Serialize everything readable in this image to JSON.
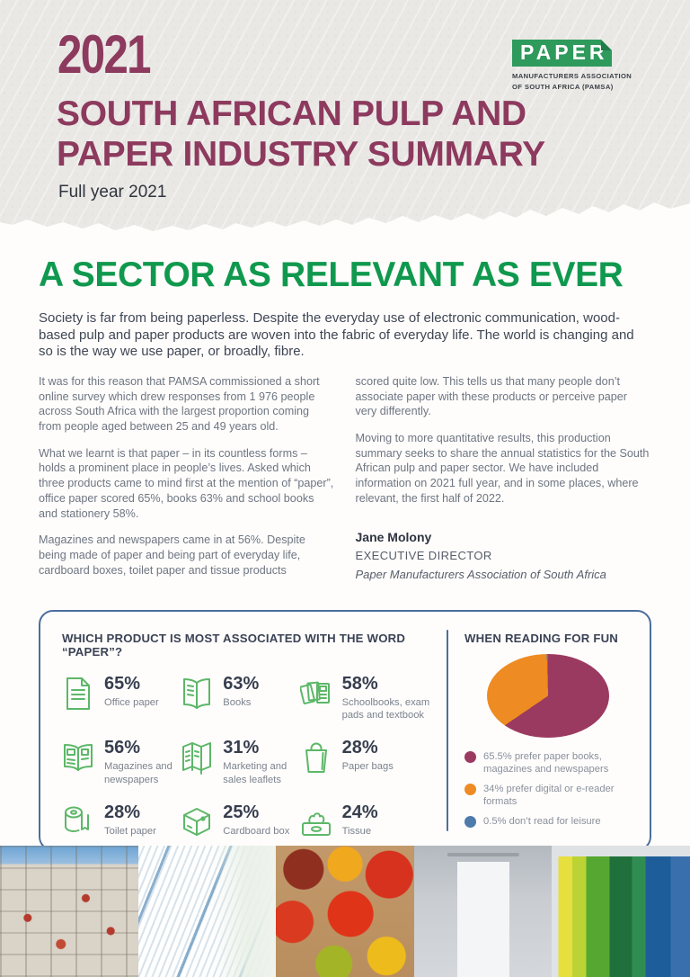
{
  "header": {
    "year": "2021",
    "logo": {
      "brand": "PAPER",
      "line1": "MANUFACTURERS ASSOCIATION",
      "line2": "OF SOUTH AFRICA (PAMSA)"
    },
    "title_line1": "SOUTH AFRICAN PULP AND",
    "title_line2": "PAPER INDUSTRY SUMMARY",
    "subtitle": "Full year 2021"
  },
  "article": {
    "heading": "A SECTOR AS RELEVANT AS EVER",
    "intro": "Society is far from being paperless. Despite the everyday use of electronic communication, wood-based pulp and paper products are woven into the fabric of everyday life. The world is changing and so is the way we use paper, or broadly, fibre.",
    "left_column": [
      "It was for this reason that PAMSA commissioned a short online survey which drew responses from 1 976 people across South Africa with the largest proportion coming from people aged between 25 and 49 years old.",
      "What we learnt is that paper – in its countless forms – holds a prominent place in people’s lives. Asked which three products came to mind first at the mention of “paper”, office paper scored 65%, books 63% and school books and stationery 58%.",
      "Magazines and newspapers came in at 56%. Despite being made of paper and being part of everyday life, cardboard boxes, toilet paper and tissue products"
    ],
    "right_column": [
      "scored quite low. This tells us that many people don’t associate paper with these products or perceive paper very differently.",
      "Moving to more quantitative results, this production summary seeks to share the annual statistics for the South African pulp and paper sector. We have included information on 2021 full year, and in some places, where relevant, the first half of 2022."
    ],
    "signature": {
      "name": "Jane Molony",
      "title": "EXECUTIVE DIRECTOR",
      "organisation": "Paper Manufacturers Association of South Africa"
    }
  },
  "stats_panel": {
    "title": "WHICH PRODUCT IS MOST ASSOCIATED WITH THE WORD “PAPER”?",
    "items": [
      {
        "value": "65%",
        "label": "Office paper",
        "icon": "office-paper-icon"
      },
      {
        "value": "63%",
        "label": "Books",
        "icon": "books-icon"
      },
      {
        "value": "58%",
        "label": "Schoolbooks, exam pads and textbook",
        "icon": "schoolbooks-icon"
      },
      {
        "value": "56%",
        "label": "Magazines and newspapers",
        "icon": "magazines-icon"
      },
      {
        "value": "31%",
        "label": "Marketing and sales leaflets",
        "icon": "leaflets-icon"
      },
      {
        "value": "28%",
        "label": "Paper bags",
        "icon": "paper-bag-icon"
      },
      {
        "value": "28%",
        "label": "Toilet paper",
        "icon": "toilet-paper-icon"
      },
      {
        "value": "25%",
        "label": "Cardboard box",
        "icon": "cardboard-box-icon"
      },
      {
        "value": "24%",
        "label": "Tissue",
        "icon": "tissue-icon"
      }
    ]
  },
  "reading_panel": {
    "title": "WHEN READING FOR FUN"
  },
  "chart_data": {
    "type": "pie",
    "title": "WHEN READING FOR FUN",
    "start_angle_deg": 0,
    "direction": "clockwise",
    "legend_position": "bottom",
    "slices": [
      {
        "label": "prefer paper books, magazines and newspapers",
        "value": 65.5,
        "color": "#9b3a60"
      },
      {
        "label": "prefer digital or e-reader formats",
        "value": 34,
        "color": "#ee8b22"
      },
      {
        "label": "don’t read for leisure",
        "value": 0.5,
        "color": "#4d7bab"
      }
    ]
  },
  "photo_strip": [
    {
      "name": "recycled-paper-bales-photo",
      "alt": "Bales of recovered paper for recycling under a blue sky"
    },
    {
      "name": "paper-stack-photo",
      "alt": "Fanned stack of white office paper"
    },
    {
      "name": "tomatoes-photo",
      "alt": "Red and yellow tomatoes in a cardboard tray"
    },
    {
      "name": "toilet-paper-photo",
      "alt": "White toilet paper roll on a chrome holder"
    },
    {
      "name": "clothes-photo",
      "alt": "Colourful garments hanging on a rail"
    }
  ],
  "colors": {
    "maroon": "#8d3a5e",
    "green": "#10994e",
    "logo_green": "#2e9a5c",
    "panel_border": "#4c6f9c",
    "icon_green": "#5db768",
    "pie_maroon": "#9b3a60",
    "pie_orange": "#ee8b22",
    "pie_blue": "#4d7bab"
  }
}
